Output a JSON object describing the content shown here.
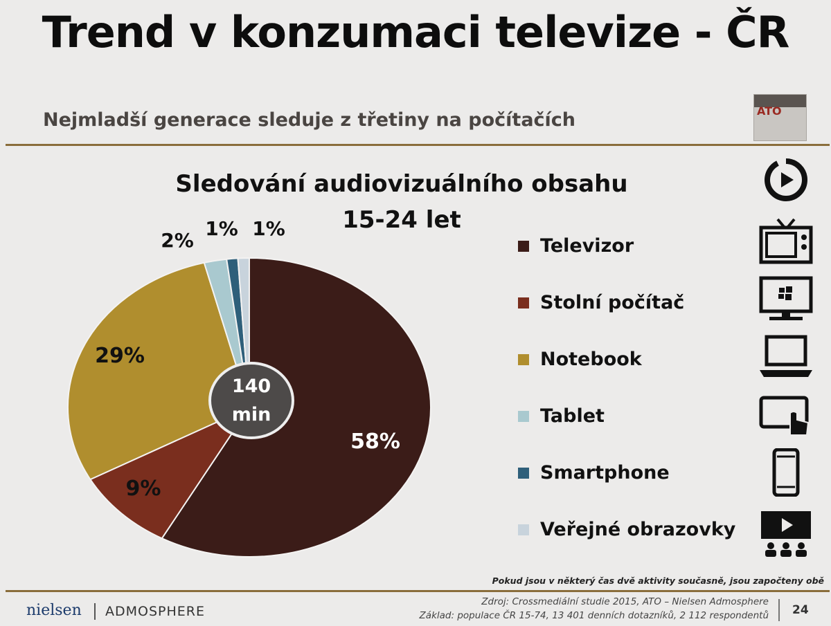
{
  "header": {
    "title": "Trend v konzumaci televize - ČR",
    "subtitle": "Nejmladší generace sleduje z třetiny na počítačích",
    "logo_text": "ATO"
  },
  "chart_data": {
    "type": "pie",
    "title": "Sledování audiovizuálního obsahu",
    "subtitle": "15-24 let",
    "center_value": "140",
    "center_unit": "min",
    "slices": [
      {
        "name": "Televizor",
        "value": 58,
        "label": "58%",
        "color": "#3b1c18"
      },
      {
        "name": "Stolní počítač",
        "value": 9,
        "label": "9%",
        "color": "#7a2e1e"
      },
      {
        "name": "Notebook",
        "value": 29,
        "label": "29%",
        "color": "#b08e2e"
      },
      {
        "name": "Tablet",
        "value": 2,
        "label": "2%",
        "color": "#a9c9cf"
      },
      {
        "name": "Smartphone",
        "value": 1,
        "label": "1%",
        "color": "#2e5f7a"
      },
      {
        "name": "Veřejné obrazovky",
        "value": 1,
        "label": "1%",
        "color": "#c8d3dc"
      }
    ],
    "legend_position": "right"
  },
  "legend_icons": [
    "play-circle-icon",
    "tv-icon",
    "desktop-monitor-icon",
    "laptop-icon",
    "tablet-touch-icon",
    "smartphone-icon",
    "public-screen-icon"
  ],
  "footer": {
    "note": "Pokud jsou v některý čas dvě aktivity současně, jsou započteny obě",
    "brand_nielsen": "nielsen",
    "brand_admosphere": "ADMOSPHERE",
    "source_line1": "Zdroj: Crossmediální studie 2015, ATO – Nielsen Admosphere",
    "source_line2": "Základ: populace ČR 15-74, 13 401 denních dotazníků, 2 112 respondentů",
    "page_number": "24"
  }
}
